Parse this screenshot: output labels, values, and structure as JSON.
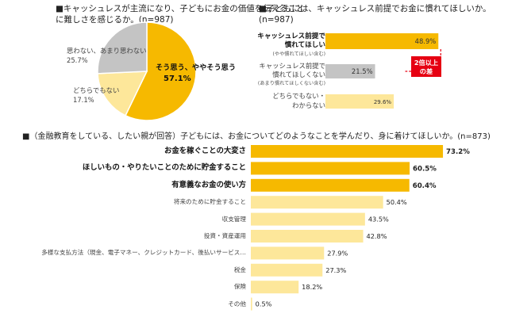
{
  "colors": {
    "strong": "#f6b900",
    "light": "#fde79a",
    "gray": "#c4c4c4",
    "red": "#e60012"
  },
  "chart_data": [
    {
      "type": "pie",
      "title_line1": "■キャッシュレスが主流になり、子どもにお金の価値を伝えること",
      "title_line2": "に難しさを感じるか。(n=987)",
      "slices": [
        {
          "label": "そう思う、ややそう思う",
          "value": 57.1,
          "value_label": "57.1%",
          "color": "#f6b900"
        },
        {
          "label": "どちらでもない",
          "value": 17.1,
          "value_label": "17.1%",
          "color": "#fde79a"
        },
        {
          "label": "思わない、あまり思わない",
          "value": 25.7,
          "value_label": "25.7%",
          "color": "#c4c4c4"
        }
      ]
    },
    {
      "type": "bar",
      "orientation": "horizontal",
      "title_line1": "■子どもには、キャッシュレス前提でお金に慣れてほしいか。",
      "title_line2": "(n=987)",
      "xlim": [
        0,
        55
      ],
      "bars": [
        {
          "line1": "キャッシュレス前提で",
          "line2": "慣れてほしい",
          "sub": "(やや慣れてほしい含む)",
          "value": 48.9,
          "value_label": "48.9%",
          "emphasis": true,
          "color": "#f6b900"
        },
        {
          "line1": "キャッシュレス前提で",
          "line2": "慣れてほしくない",
          "sub": "(あまり慣れてほしくない含む)",
          "value": 21.5,
          "value_label": "21.5%",
          "emphasis": false,
          "color": "#c4c4c4"
        },
        {
          "line1": "どちらでもない・",
          "line2": "わからない",
          "sub": "",
          "value": 29.6,
          "value_label": "29.6%",
          "emphasis": false,
          "color": "#fde79a"
        }
      ],
      "annotation": {
        "line1": "2倍以上",
        "line2": "の差"
      }
    },
    {
      "type": "bar",
      "orientation": "horizontal",
      "title": "■（金融教育をしている、したい親が回答）子どもには、お金についてどのようなことを学んだり、身に着けてほしいか。(n=873)",
      "xlim": [
        0,
        75
      ],
      "bars": [
        {
          "label": "お金を稼ぐことの大変さ",
          "value": 73.2,
          "value_label": "73.2%",
          "emphasis": true
        },
        {
          "label": "ほしいもの・やりたいことのために貯金すること",
          "value": 60.5,
          "value_label": "60.5%",
          "emphasis": true
        },
        {
          "label": "有意義なお金の使い方",
          "value": 60.4,
          "value_label": "60.4%",
          "emphasis": true
        },
        {
          "label": "将来のために貯金すること",
          "value": 50.4,
          "value_label": "50.4%",
          "emphasis": false
        },
        {
          "label": "収支管理",
          "value": 43.5,
          "value_label": "43.5%",
          "emphasis": false
        },
        {
          "label": "投資・資産運用",
          "value": 42.8,
          "value_label": "42.8%",
          "emphasis": false
        },
        {
          "label": "多様な支払方法（現金、電子マネー、クレジットカード、後払いサービス…",
          "value": 27.9,
          "value_label": "27.9%",
          "emphasis": false
        },
        {
          "label": "税金",
          "value": 27.3,
          "value_label": "27.3%",
          "emphasis": false
        },
        {
          "label": "保険",
          "value": 18.2,
          "value_label": "18.2%",
          "emphasis": false
        },
        {
          "label": "その他",
          "value": 0.5,
          "value_label": "0.5%",
          "emphasis": false
        }
      ]
    }
  ]
}
